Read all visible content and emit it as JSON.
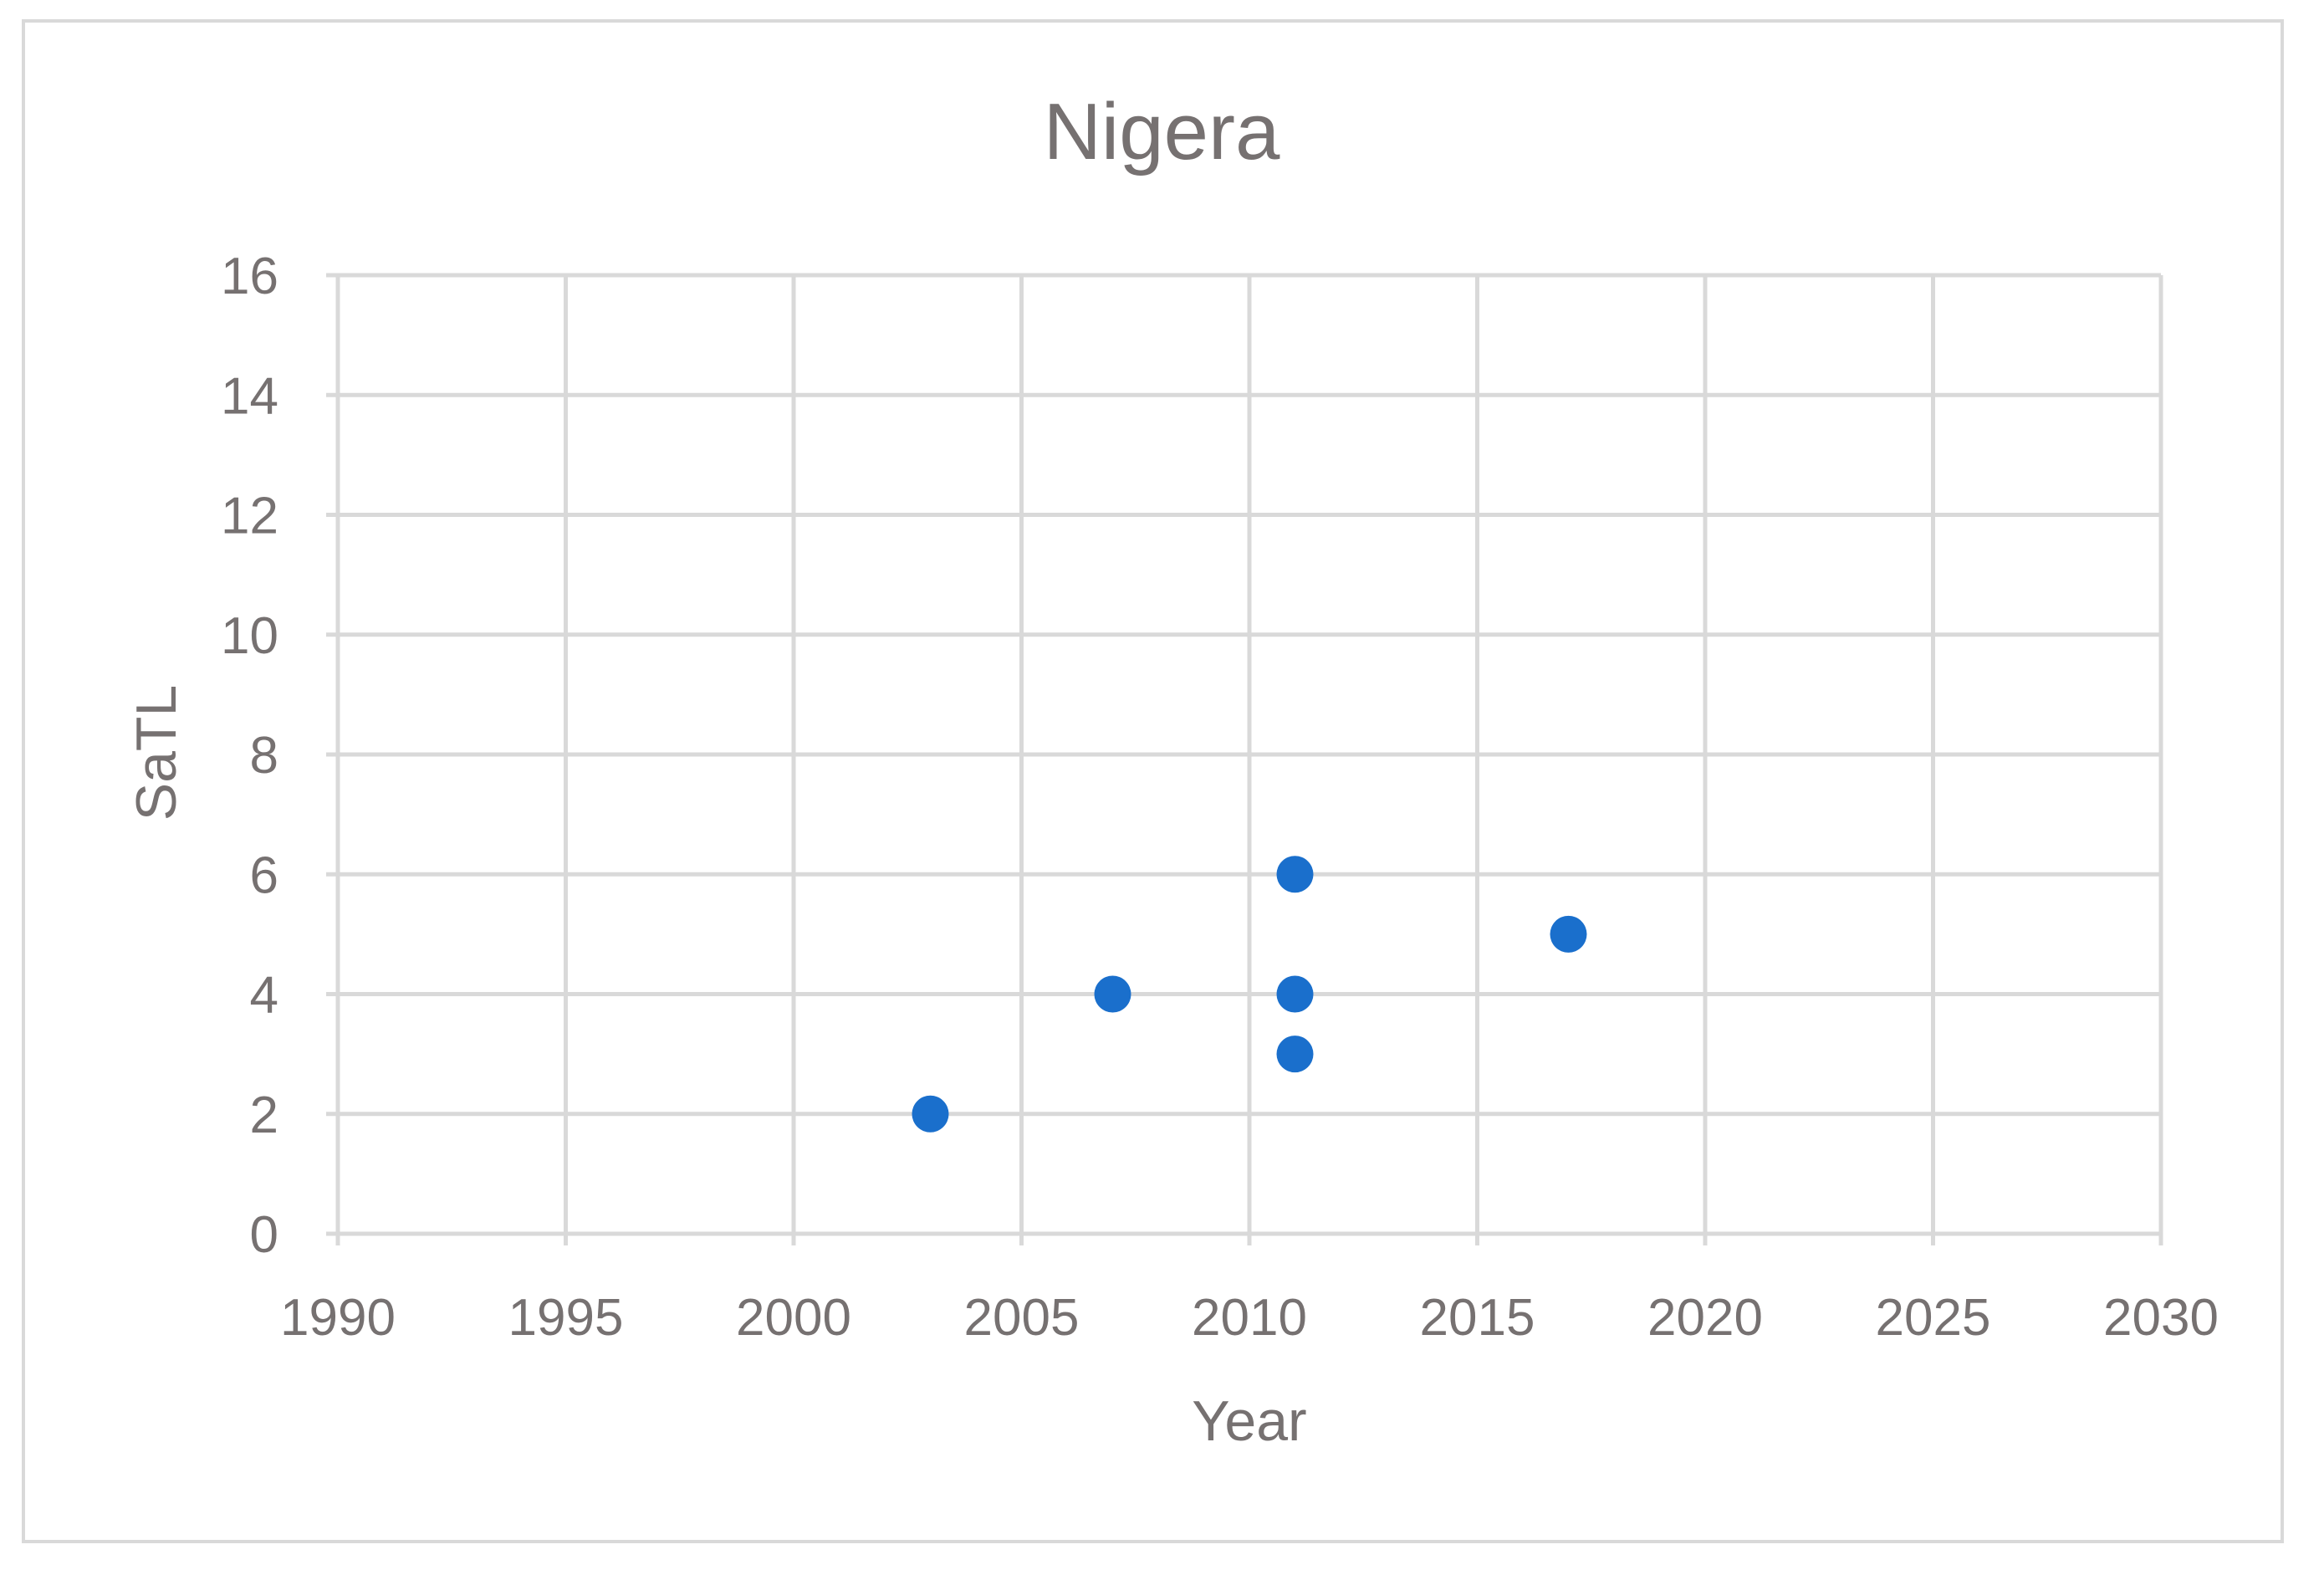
{
  "chart_data": {
    "type": "scatter",
    "title": "Nigera",
    "xlabel": "Year",
    "ylabel": "SaTL",
    "xlim": [
      1990,
      2030
    ],
    "ylim": [
      0,
      16
    ],
    "x_ticks": [
      1990,
      1995,
      2000,
      2005,
      2010,
      2015,
      2020,
      2025,
      2030
    ],
    "y_ticks": [
      0,
      2,
      4,
      6,
      8,
      10,
      12,
      14,
      16
    ],
    "grid": true,
    "legend": "none",
    "series": [
      {
        "color": "#1a6fcc",
        "points": [
          {
            "x": 2003,
            "y": 2
          },
          {
            "x": 2007,
            "y": 4
          },
          {
            "x": 2011,
            "y": 6
          },
          {
            "x": 2011,
            "y": 4
          },
          {
            "x": 2011,
            "y": 3
          },
          {
            "x": 2017,
            "y": 5
          }
        ]
      }
    ]
  }
}
